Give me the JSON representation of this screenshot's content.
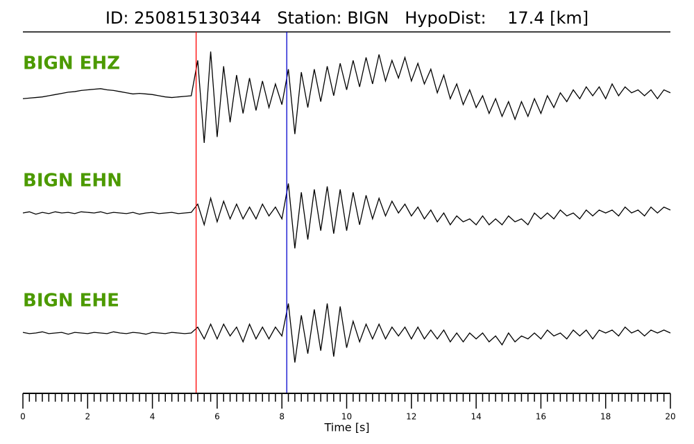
{
  "chart_data": {
    "type": "seismogram",
    "title": "ID: 250815130344   Station: BIGN   HypoDist:    17.4 [km]",
    "xlabel": "Time [s]",
    "xlim": [
      0,
      20
    ],
    "xticks": [
      0,
      2,
      4,
      6,
      8,
      10,
      12,
      14,
      16,
      18,
      20
    ],
    "xminorticks": [
      0.2,
      0.4,
      0.6,
      0.8,
      1,
      1.2,
      1.4,
      1.6,
      1.8,
      2.2,
      2.4,
      2.6,
      2.8,
      3,
      3.2,
      3.4,
      3.6,
      3.8,
      4.2,
      4.4,
      4.6,
      4.8,
      5,
      5.2,
      5.4,
      5.6,
      5.8,
      6.2,
      6.4,
      6.6,
      6.8,
      7,
      7.2,
      7.4,
      7.6,
      7.8,
      8.2,
      8.4,
      8.6,
      8.8,
      9,
      9.2,
      9.4,
      9.6,
      9.8,
      10.2,
      10.4,
      10.6,
      10.8,
      11,
      11.2,
      11.4,
      11.6,
      11.8,
      12.2,
      12.4,
      12.6,
      12.8,
      13,
      13.2,
      13.4,
      13.6,
      13.8,
      14.2,
      14.4,
      14.6,
      14.8,
      15,
      15.2,
      15.4,
      15.6,
      15.8,
      16.2,
      16.4,
      16.6,
      16.8,
      17,
      17.2,
      17.4,
      17.6,
      17.8,
      18.2,
      18.4,
      18.6,
      18.8,
      19,
      19.2,
      19.4,
      19.6,
      19.8
    ],
    "ylim": [
      -1,
      1
    ],
    "label_color": "#4c9a00",
    "picks": [
      {
        "value": 5.35,
        "color": "#ff0000"
      },
      {
        "value": 8.15,
        "color": "#0000cc"
      }
    ],
    "x": [
      0,
      0.2,
      0.4,
      0.6,
      0.8,
      1,
      1.2,
      1.4,
      1.6,
      1.8,
      2,
      2.2,
      2.4,
      2.6,
      2.8,
      3,
      3.2,
      3.4,
      3.6,
      3.8,
      4,
      4.2,
      4.4,
      4.6,
      4.8,
      5,
      5.2,
      5.4,
      5.6,
      5.8,
      6,
      6.2,
      6.4,
      6.6,
      6.8,
      7,
      7.2,
      7.4,
      7.6,
      7.8,
      8,
      8.2,
      8.4,
      8.6,
      8.8,
      9,
      9.2,
      9.4,
      9.6,
      9.8,
      10,
      10.2,
      10.4,
      10.6,
      10.8,
      11,
      11.2,
      11.4,
      11.6,
      11.8,
      12,
      12.2,
      12.4,
      12.6,
      12.8,
      13,
      13.2,
      13.4,
      13.6,
      13.8,
      14,
      14.2,
      14.4,
      14.6,
      14.8,
      15,
      15.2,
      15.4,
      15.6,
      15.8,
      16,
      16.2,
      16.4,
      16.6,
      16.8,
      17,
      17.2,
      17.4,
      17.6,
      17.8,
      18,
      18.2,
      18.4,
      18.6,
      18.8,
      19,
      19.2,
      19.4,
      19.6,
      19.8,
      20
    ],
    "series": [
      {
        "name": "BIGN EHZ",
        "color": "#000000",
        "values": [
          -0.05,
          -0.04,
          -0.03,
          -0.02,
          0.0,
          0.02,
          0.04,
          0.06,
          0.07,
          0.09,
          0.1,
          0.11,
          0.12,
          0.1,
          0.09,
          0.07,
          0.05,
          0.03,
          0.04,
          0.03,
          0.02,
          0.0,
          -0.02,
          -0.03,
          -0.02,
          -0.01,
          0.0,
          0.6,
          -0.8,
          0.75,
          -0.7,
          0.5,
          -0.45,
          0.35,
          -0.3,
          0.3,
          -0.25,
          0.25,
          -0.2,
          0.2,
          -0.15,
          0.45,
          -0.65,
          0.4,
          -0.2,
          0.45,
          -0.1,
          0.5,
          0.0,
          0.55,
          0.1,
          0.6,
          0.15,
          0.65,
          0.2,
          0.7,
          0.25,
          0.6,
          0.3,
          0.65,
          0.25,
          0.55,
          0.2,
          0.45,
          0.05,
          0.35,
          -0.05,
          0.2,
          -0.15,
          0.1,
          -0.2,
          0.0,
          -0.3,
          -0.05,
          -0.35,
          -0.1,
          -0.4,
          -0.1,
          -0.35,
          -0.05,
          -0.3,
          0.0,
          -0.2,
          0.05,
          -0.1,
          0.1,
          -0.05,
          0.15,
          0.0,
          0.15,
          -0.05,
          0.2,
          0.0,
          0.15,
          0.05,
          0.1,
          0.0,
          0.1,
          -0.05,
          0.1,
          0.05
        ]
      },
      {
        "name": "BIGN EHN",
        "color": "#000000",
        "values": [
          0.0,
          0.02,
          -0.02,
          0.01,
          -0.01,
          0.02,
          0.0,
          0.01,
          -0.01,
          0.02,
          0.01,
          0.0,
          0.02,
          -0.01,
          0.01,
          0.0,
          -0.01,
          0.01,
          -0.02,
          0.0,
          0.01,
          -0.01,
          0.0,
          0.01,
          -0.01,
          0.0,
          0.01,
          0.15,
          -0.2,
          0.25,
          -0.15,
          0.2,
          -0.1,
          0.15,
          -0.1,
          0.1,
          -0.1,
          0.15,
          -0.05,
          0.1,
          -0.1,
          0.5,
          -0.6,
          0.35,
          -0.45,
          0.4,
          -0.3,
          0.45,
          -0.35,
          0.4,
          -0.3,
          0.35,
          -0.2,
          0.3,
          -0.1,
          0.25,
          -0.05,
          0.2,
          0.0,
          0.15,
          -0.05,
          0.1,
          -0.1,
          0.05,
          -0.15,
          0.0,
          -0.2,
          -0.05,
          -0.15,
          -0.1,
          -0.2,
          -0.05,
          -0.2,
          -0.1,
          -0.2,
          -0.05,
          -0.15,
          -0.1,
          -0.2,
          0.0,
          -0.1,
          0.0,
          -0.1,
          0.05,
          -0.05,
          0.0,
          -0.1,
          0.05,
          -0.05,
          0.05,
          0.0,
          0.05,
          -0.05,
          0.1,
          0.0,
          0.05,
          -0.05,
          0.1,
          0.0,
          0.1,
          0.05
        ]
      },
      {
        "name": "BIGN EHE",
        "color": "#000000",
        "values": [
          0.01,
          -0.01,
          0.0,
          0.02,
          -0.01,
          0.0,
          0.01,
          -0.02,
          0.01,
          0.0,
          -0.01,
          0.01,
          0.0,
          -0.01,
          0.02,
          0.0,
          -0.01,
          0.01,
          0.0,
          -0.02,
          0.01,
          0.0,
          -0.01,
          0.01,
          0.0,
          -0.01,
          0.0,
          0.1,
          -0.1,
          0.15,
          -0.1,
          0.15,
          -0.05,
          0.1,
          -0.15,
          0.15,
          -0.1,
          0.1,
          -0.1,
          0.1,
          -0.05,
          0.5,
          -0.5,
          0.3,
          -0.35,
          0.4,
          -0.3,
          0.5,
          -0.4,
          0.45,
          -0.25,
          0.2,
          -0.15,
          0.15,
          -0.1,
          0.15,
          -0.1,
          0.1,
          -0.05,
          0.1,
          -0.1,
          0.1,
          -0.1,
          0.05,
          -0.1,
          0.05,
          -0.15,
          0.0,
          -0.15,
          0.0,
          -0.1,
          0.0,
          -0.15,
          -0.05,
          -0.2,
          0.0,
          -0.15,
          -0.05,
          -0.1,
          0.0,
          -0.1,
          0.05,
          -0.05,
          0.0,
          -0.1,
          0.05,
          -0.05,
          0.05,
          -0.1,
          0.05,
          0.0,
          0.05,
          -0.05,
          0.1,
          0.0,
          0.05,
          -0.05,
          0.05,
          0.0,
          0.05,
          0.0
        ]
      }
    ]
  }
}
